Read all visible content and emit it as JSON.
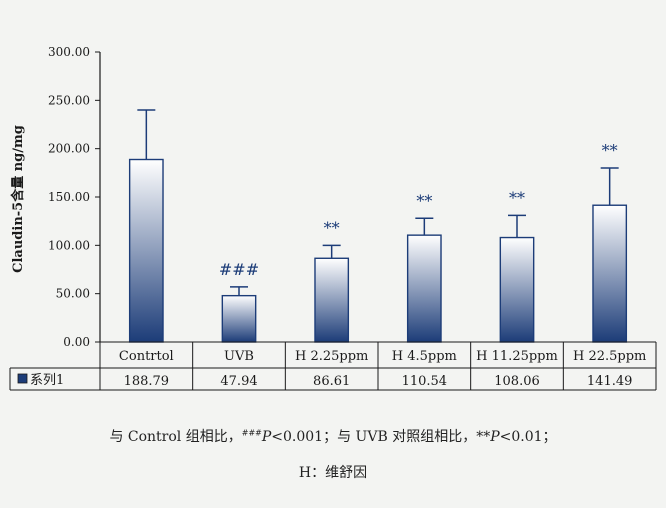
{
  "chart_data": {
    "type": "bar",
    "ylabel": "Claudin-5含量 ng/mg",
    "ylim": [
      0,
      300
    ],
    "yticks": [
      "0.00",
      "50.00",
      "100.00",
      "150.00",
      "200.00",
      "250.00",
      "300.00"
    ],
    "categories": [
      "Contrtol",
      "UVB",
      "H 2.25ppm",
      "H 4.5ppm",
      "H 11.25ppm",
      "H 22.5ppm"
    ],
    "series": [
      {
        "name": "系列1",
        "values": [
          188.79,
          47.94,
          86.61,
          110.54,
          108.06,
          141.49
        ],
        "value_labels": [
          "188.79",
          "47.94",
          "86.61",
          "110.54",
          "108.06",
          "141.49"
        ],
        "error_upper": [
          240,
          57,
          100,
          128,
          131,
          180
        ]
      }
    ],
    "annotations": [
      "",
      "###",
      "**",
      "**",
      "**",
      "**"
    ],
    "data_table": true,
    "grid": false,
    "bar_gradient": [
      "#ffffff",
      "#1c3c78"
    ]
  },
  "footnote": {
    "line1_a": "与 Control 组相比，",
    "line1_sup": "###",
    "line1_b": "P",
    "line1_c": "<0.001；与 UVB 对照组相比，**",
    "line1_d": "P",
    "line1_e": "<0.01；",
    "line2": "H：维舒因"
  }
}
